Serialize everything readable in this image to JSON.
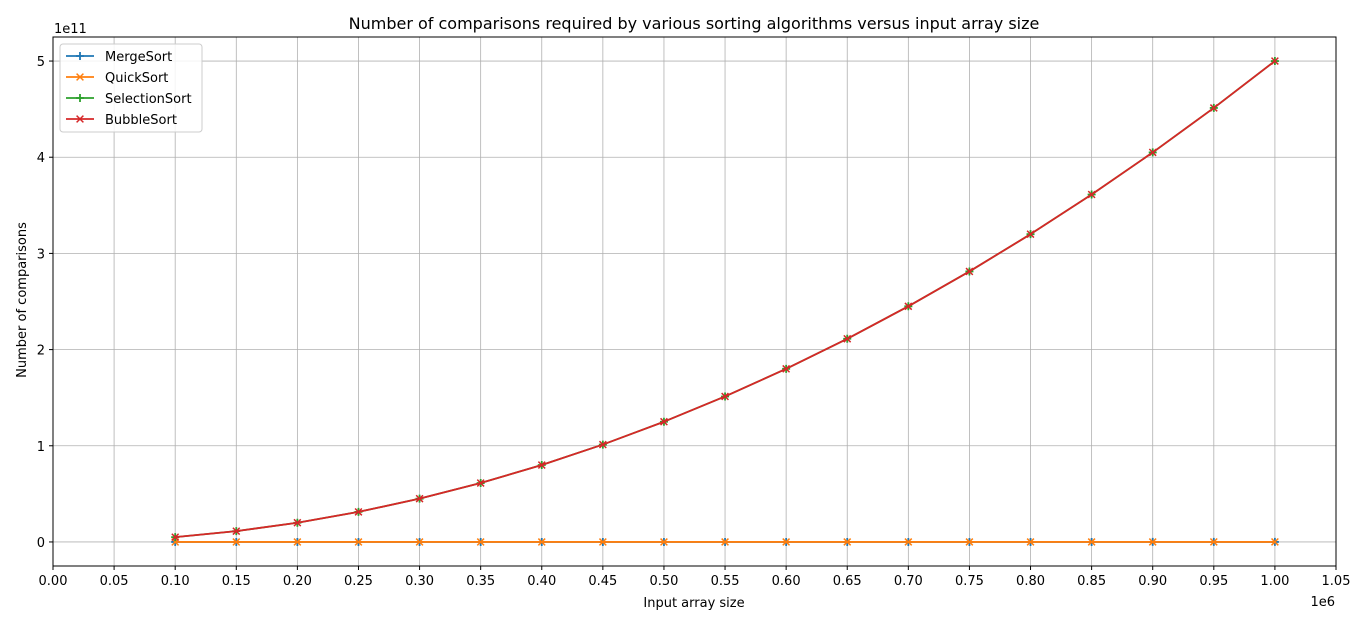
{
  "chart_data": {
    "type": "line",
    "title": "Number of comparisons required by various sorting algorithms versus input array size",
    "xlabel": "Input array size",
    "ylabel": "Number of comparisons",
    "x_offset_label": "1e6",
    "y_offset_label": "1e11",
    "xlim": [
      0,
      1.05
    ],
    "ylim": [
      -0.25,
      5.25
    ],
    "x_ticks": [
      "0.00",
      "0.05",
      "0.10",
      "0.15",
      "0.20",
      "0.25",
      "0.30",
      "0.35",
      "0.40",
      "0.45",
      "0.50",
      "0.55",
      "0.60",
      "0.65",
      "0.70",
      "0.75",
      "0.80",
      "0.85",
      "0.90",
      "0.95",
      "1.00",
      "1.05"
    ],
    "y_ticks": [
      "0",
      "1",
      "2",
      "3",
      "4",
      "5"
    ],
    "grid": true,
    "legend_position": "top-left",
    "x": [
      0.1,
      0.15,
      0.2,
      0.25,
      0.3,
      0.35,
      0.4,
      0.45,
      0.5,
      0.55,
      0.6,
      0.65,
      0.7,
      0.75,
      0.8,
      0.85,
      0.9,
      0.95,
      1.0
    ],
    "series": [
      {
        "name": "MergeSort",
        "color": "#1f77b4",
        "marker": "plus",
        "values": [
          1.7e-05,
          2.6e-05,
          3.6e-05,
          4.6e-05,
          5.6e-05,
          6.6e-05,
          7.6e-05,
          8.6e-05,
          9.6e-05,
          0.000106,
          0.000116,
          0.000126,
          0.000137,
          0.000148,
          0.000158,
          0.000168,
          0.000179,
          0.00019,
          0.0002
        ]
      },
      {
        "name": "QuickSort",
        "color": "#ff7f0e",
        "marker": "x",
        "values": [
          2.1e-05,
          3.2e-05,
          4.4e-05,
          5.6e-05,
          6.9e-05,
          8.2e-05,
          9.4e-05,
          0.000107,
          0.00012,
          0.000133,
          0.000146,
          0.00016,
          0.000173,
          0.000187,
          0.0002,
          0.000213,
          0.000227,
          0.00024,
          0.000254
        ]
      },
      {
        "name": "SelectionSort",
        "color": "#2ca02c",
        "marker": "plus",
        "values": [
          0.05,
          0.1125,
          0.2,
          0.3125,
          0.45,
          0.6125,
          0.8,
          1.0125,
          1.25,
          1.5125,
          1.8,
          2.1125,
          2.45,
          2.8125,
          3.2,
          3.6125,
          4.05,
          4.5125,
          5.0
        ]
      },
      {
        "name": "BubbleSort",
        "color": "#d62728",
        "marker": "x",
        "values": [
          0.05,
          0.1125,
          0.2,
          0.3125,
          0.45,
          0.6125,
          0.8,
          1.0125,
          1.25,
          1.5125,
          1.8,
          2.1125,
          2.45,
          2.8125,
          3.2,
          3.6125,
          4.05,
          4.5125,
          5.0
        ]
      }
    ]
  }
}
